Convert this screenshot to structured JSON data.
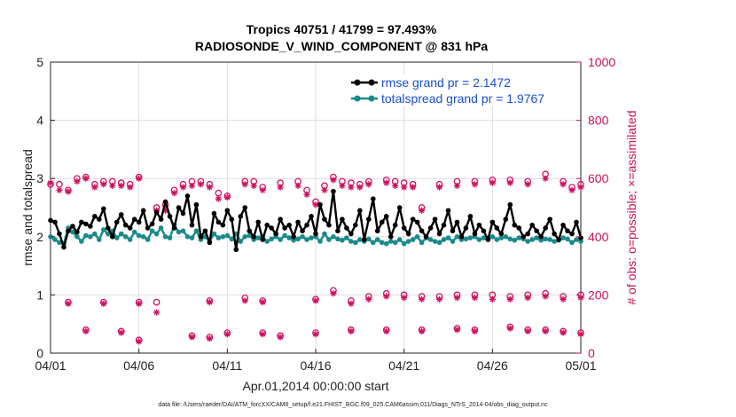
{
  "chart_data": {
    "type": "line",
    "title_line1": "Tropics 40751 / 41799 = 97.493%",
    "title_line2": "RADIOSONDE_V_WIND_COMPONENT @ 831 hPa",
    "xlabel": "Apr.01,2014 00:00:00 start",
    "ylabel_left": "rmse and totalspread",
    "ylabel_right": "# of obs: o=possible; ×=assimilated",
    "footer": "data file: /Users/raeder/DAI/ATM_forcXX/CAM6_setup/f.e21.FHIST_BGC.f09_025.CAM6assim.011/Diags_NTrS_2014-04/obs_diag_output.nc",
    "x_ticks": [
      "04/01",
      "04/06",
      "04/11",
      "04/16",
      "04/21",
      "04/26",
      "05/01"
    ],
    "x_range_days": [
      0,
      30
    ],
    "ylim_left": [
      0,
      5
    ],
    "yticks_left": [
      "0",
      "1",
      "2",
      "3",
      "4",
      "5"
    ],
    "ylim_right": [
      0,
      1000
    ],
    "yticks_right": [
      "0",
      "200",
      "400",
      "600",
      "800",
      "1000"
    ],
    "colors": {
      "rmse": "#000000",
      "spread": "#1a8a8a",
      "obs": "#d01060",
      "legend_text": "#1a4fd0",
      "right_axis": "#c8115a"
    },
    "series": [
      {
        "name": "rmse grand pr = 2.1472",
        "axis": "left",
        "step_days": 0.25,
        "values": [
          2.28,
          2.25,
          2.05,
          1.82,
          2.1,
          2.18,
          2.08,
          2.25,
          2.22,
          2.18,
          2.35,
          2.3,
          2.48,
          2.15,
          2.0,
          2.25,
          2.38,
          2.2,
          2.15,
          2.3,
          2.25,
          2.45,
          2.15,
          2.22,
          2.42,
          2.3,
          2.6,
          2.35,
          2.15,
          2.5,
          2.4,
          2.7,
          2.2,
          2.55,
          2.0,
          2.1,
          1.9,
          2.4,
          2.25,
          2.2,
          2.45,
          2.3,
          1.78,
          2.35,
          2.5,
          2.1,
          2.0,
          2.25,
          1.95,
          2.2,
          2.15,
          2.05,
          2.3,
          2.15,
          2.2,
          2.0,
          2.25,
          2.1,
          2.2,
          2.35,
          2.05,
          2.55,
          2.3,
          2.2,
          2.78,
          2.1,
          2.3,
          2.15,
          2.05,
          2.2,
          2.45,
          1.95,
          2.3,
          2.65,
          2.1,
          2.25,
          2.35,
          2.0,
          2.2,
          2.5,
          2.15,
          2.05,
          2.3,
          2.25,
          2.1,
          2.0,
          2.15,
          2.3,
          2.05,
          2.2,
          2.45,
          2.1,
          2.25,
          2.0,
          2.15,
          2.35,
          2.05,
          2.2,
          2.1,
          1.95,
          2.25,
          2.15,
          2.05,
          2.3,
          2.55,
          2.2,
          2.15,
          2.0,
          2.05,
          2.2,
          2.1,
          2.0,
          2.15,
          2.3,
          2.05,
          1.95,
          2.2,
          2.1,
          2.05,
          2.25,
          1.98
        ]
      },
      {
        "name": "totalspread grand pr = 1.9767",
        "axis": "left",
        "step_days": 0.25,
        "values": [
          2.0,
          1.95,
          1.9,
          1.88,
          2.15,
          2.08,
          2.0,
          1.92,
          2.02,
          2.0,
          2.05,
          1.95,
          2.12,
          2.05,
          2.1,
          1.98,
          2.05,
          2.0,
          1.95,
          2.08,
          2.02,
          2.0,
          1.95,
          2.1,
          2.05,
          2.15,
          2.0,
          1.98,
          2.2,
          2.08,
          2.1,
          2.0,
          1.98,
          2.1,
          1.95,
          2.0,
          1.92,
          2.05,
          1.98,
          2.0,
          2.02,
          1.96,
          2.05,
          1.92,
          2.0,
          2.02,
          1.95,
          1.98,
          2.0,
          1.92,
          1.96,
          2.0,
          1.95,
          2.02,
          1.98,
          1.94,
          1.96,
          2.0,
          1.95,
          1.98,
          2.0,
          1.92,
          2.05,
          1.95,
          2.0,
          1.96,
          1.94,
          1.98,
          1.92,
          1.9,
          1.95,
          1.92,
          1.96,
          1.9,
          1.95,
          1.9,
          1.88,
          1.92,
          1.9,
          1.95,
          1.88,
          1.92,
          1.95,
          2.0,
          1.9,
          1.98,
          1.95,
          1.92,
          1.9,
          1.95,
          1.98,
          1.92,
          2.0,
          1.95,
          1.96,
          1.98,
          2.0,
          1.95,
          1.98,
          1.96,
          2.0,
          1.95,
          1.98,
          2.0,
          1.96,
          1.94,
          1.98,
          1.96,
          1.92,
          1.95,
          1.98,
          1.94,
          1.96,
          1.95,
          1.92,
          1.94,
          1.98,
          1.96,
          1.9,
          1.95,
          1.92
        ]
      },
      {
        "name": "obs_possible",
        "axis": "right",
        "marker": "circle",
        "points": [
          [
            0,
            580
          ],
          [
            0.5,
            580
          ],
          [
            1,
            560
          ],
          [
            1,
            175
          ],
          [
            1.5,
            600
          ],
          [
            2,
            605
          ],
          [
            2.5,
            580
          ],
          [
            3,
            590
          ],
          [
            3.5,
            590
          ],
          [
            4,
            585
          ],
          [
            4.5,
            580
          ],
          [
            5,
            605
          ],
          [
            6,
            500
          ],
          [
            6.5,
            510
          ],
          [
            7,
            560
          ],
          [
            7.5,
            580
          ],
          [
            8,
            590
          ],
          [
            8.5,
            590
          ],
          [
            9,
            580
          ],
          [
            9.5,
            550
          ],
          [
            10,
            540
          ],
          [
            11,
            590
          ],
          [
            11.5,
            590
          ],
          [
            12,
            570
          ],
          [
            13,
            585
          ],
          [
            14,
            590
          ],
          [
            14.5,
            560
          ],
          [
            15,
            520
          ],
          [
            15.5,
            575
          ],
          [
            16,
            605
          ],
          [
            16.5,
            590
          ],
          [
            17,
            585
          ],
          [
            17.5,
            580
          ],
          [
            18,
            590
          ],
          [
            19,
            595
          ],
          [
            19.5,
            590
          ],
          [
            20,
            585
          ],
          [
            20.5,
            580
          ],
          [
            21,
            500
          ],
          [
            22,
            580
          ],
          [
            23,
            590
          ],
          [
            24,
            590
          ],
          [
            25,
            595
          ],
          [
            26,
            595
          ],
          [
            27,
            590
          ],
          [
            28,
            615
          ],
          [
            29,
            590
          ],
          [
            29.5,
            570
          ],
          [
            30,
            580
          ],
          [
            3,
            175
          ],
          [
            5,
            175
          ],
          [
            6,
            175
          ],
          [
            9,
            180
          ],
          [
            11,
            190
          ],
          [
            12,
            180
          ],
          [
            15,
            185
          ],
          [
            16,
            215
          ],
          [
            17,
            180
          ],
          [
            18,
            195
          ],
          [
            19,
            205
          ],
          [
            20,
            200
          ],
          [
            21,
            195
          ],
          [
            22,
            195
          ],
          [
            23,
            200
          ],
          [
            24,
            200
          ],
          [
            25,
            200
          ],
          [
            26,
            195
          ],
          [
            27,
            200
          ],
          [
            28,
            205
          ],
          [
            29,
            195
          ],
          [
            30,
            200
          ],
          [
            2,
            80
          ],
          [
            4,
            75
          ],
          [
            5,
            45
          ],
          [
            8,
            60
          ],
          [
            9,
            55
          ],
          [
            10,
            70
          ],
          [
            12,
            70
          ],
          [
            13,
            60
          ],
          [
            15,
            70
          ],
          [
            17,
            80
          ],
          [
            19,
            80
          ],
          [
            21,
            80
          ],
          [
            23,
            85
          ],
          [
            24,
            80
          ],
          [
            26,
            90
          ],
          [
            27,
            80
          ],
          [
            28,
            80
          ],
          [
            29,
            75
          ],
          [
            30,
            70
          ]
        ]
      },
      {
        "name": "obs_assimilated",
        "axis": "right",
        "marker": "star",
        "points": [
          [
            0,
            585
          ],
          [
            0.5,
            560
          ],
          [
            1,
            555
          ],
          [
            1,
            170
          ],
          [
            1.5,
            590
          ],
          [
            2,
            600
          ],
          [
            2.5,
            570
          ],
          [
            3,
            580
          ],
          [
            3.5,
            575
          ],
          [
            4,
            575
          ],
          [
            4.5,
            570
          ],
          [
            5,
            600
          ],
          [
            6,
            490
          ],
          [
            6.5,
            490
          ],
          [
            7,
            550
          ],
          [
            7.5,
            570
          ],
          [
            8,
            575
          ],
          [
            8.5,
            580
          ],
          [
            9,
            570
          ],
          [
            9.5,
            530
          ],
          [
            10,
            535
          ],
          [
            11,
            580
          ],
          [
            11.5,
            575
          ],
          [
            12,
            560
          ],
          [
            13,
            570
          ],
          [
            14,
            575
          ],
          [
            14.5,
            545
          ],
          [
            15,
            510
          ],
          [
            15.5,
            560
          ],
          [
            16,
            595
          ],
          [
            16.5,
            575
          ],
          [
            17,
            570
          ],
          [
            17.5,
            570
          ],
          [
            18,
            580
          ],
          [
            19,
            585
          ],
          [
            19.5,
            575
          ],
          [
            20,
            570
          ],
          [
            20.5,
            570
          ],
          [
            21,
            490
          ],
          [
            22,
            570
          ],
          [
            23,
            575
          ],
          [
            24,
            580
          ],
          [
            25,
            585
          ],
          [
            26,
            585
          ],
          [
            27,
            580
          ],
          [
            28,
            600
          ],
          [
            29,
            580
          ],
          [
            29.5,
            560
          ],
          [
            30,
            570
          ],
          [
            3,
            170
          ],
          [
            5,
            170
          ],
          [
            6,
            140
          ],
          [
            9,
            175
          ],
          [
            11,
            180
          ],
          [
            12,
            175
          ],
          [
            15,
            180
          ],
          [
            16,
            205
          ],
          [
            17,
            170
          ],
          [
            18,
            185
          ],
          [
            19,
            195
          ],
          [
            20,
            190
          ],
          [
            21,
            185
          ],
          [
            22,
            185
          ],
          [
            23,
            190
          ],
          [
            24,
            190
          ],
          [
            25,
            185
          ],
          [
            26,
            185
          ],
          [
            27,
            190
          ],
          [
            28,
            195
          ],
          [
            29,
            185
          ],
          [
            30,
            190
          ],
          [
            2,
            75
          ],
          [
            4,
            70
          ],
          [
            5,
            40
          ],
          [
            8,
            55
          ],
          [
            9,
            50
          ],
          [
            10,
            65
          ],
          [
            12,
            65
          ],
          [
            13,
            55
          ],
          [
            15,
            65
          ],
          [
            17,
            75
          ],
          [
            19,
            75
          ],
          [
            21,
            75
          ],
          [
            23,
            80
          ],
          [
            24,
            75
          ],
          [
            26,
            85
          ],
          [
            27,
            75
          ],
          [
            28,
            75
          ],
          [
            29,
            70
          ],
          [
            30,
            65
          ]
        ]
      }
    ],
    "legend": {
      "position": "top-right",
      "entries": [
        "rmse grand pr = 2.1472",
        "totalspread grand pr = 1.9767"
      ]
    },
    "grid": true
  }
}
